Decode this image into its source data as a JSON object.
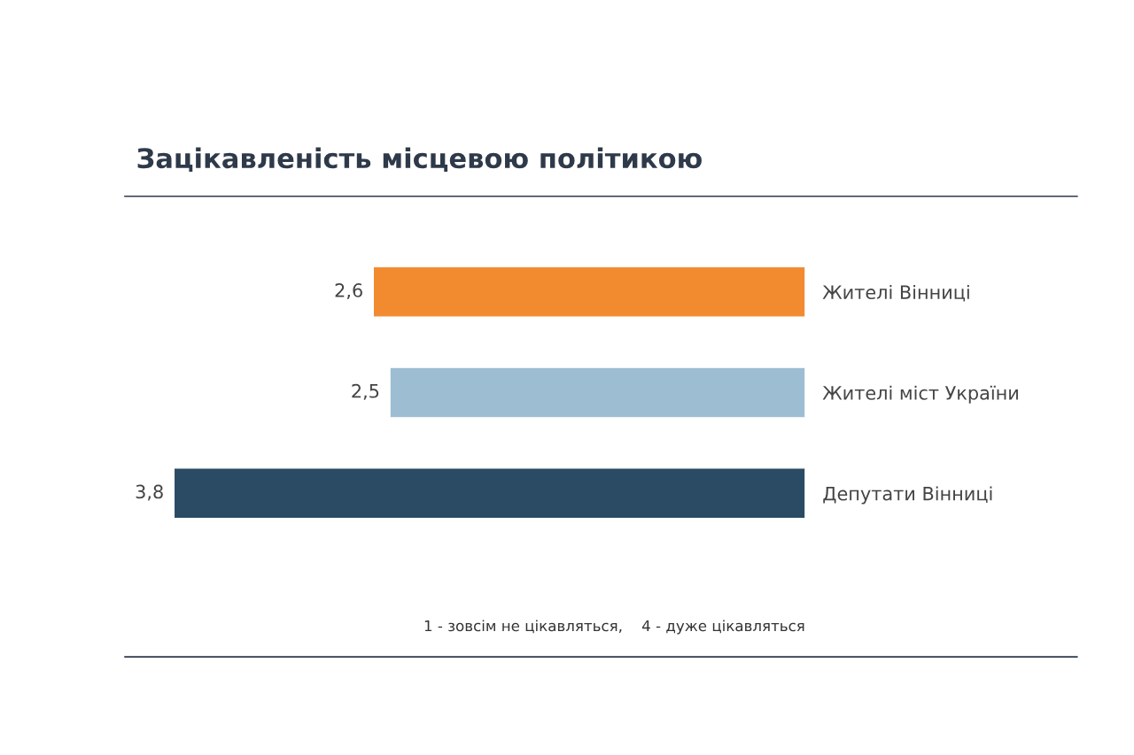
{
  "chart_data": {
    "type": "bar",
    "orientation": "horizontal",
    "title": "Зацікавленість місцевою політикою",
    "categories": [
      "Жителі Вінниці",
      "Жителі міст України",
      "Депутати Вінниці"
    ],
    "values": [
      2.6,
      2.5,
      3.8
    ],
    "colors": [
      "#f28a30",
      "#9dbdd2",
      "#2b4a63"
    ],
    "value_labels": [
      "2,6",
      "2,5",
      "3,8"
    ],
    "annotations": [
      "1 - зовсім не цікавляться,    4 - дуже цікавляться"
    ],
    "grid": false,
    "legend": false
  }
}
